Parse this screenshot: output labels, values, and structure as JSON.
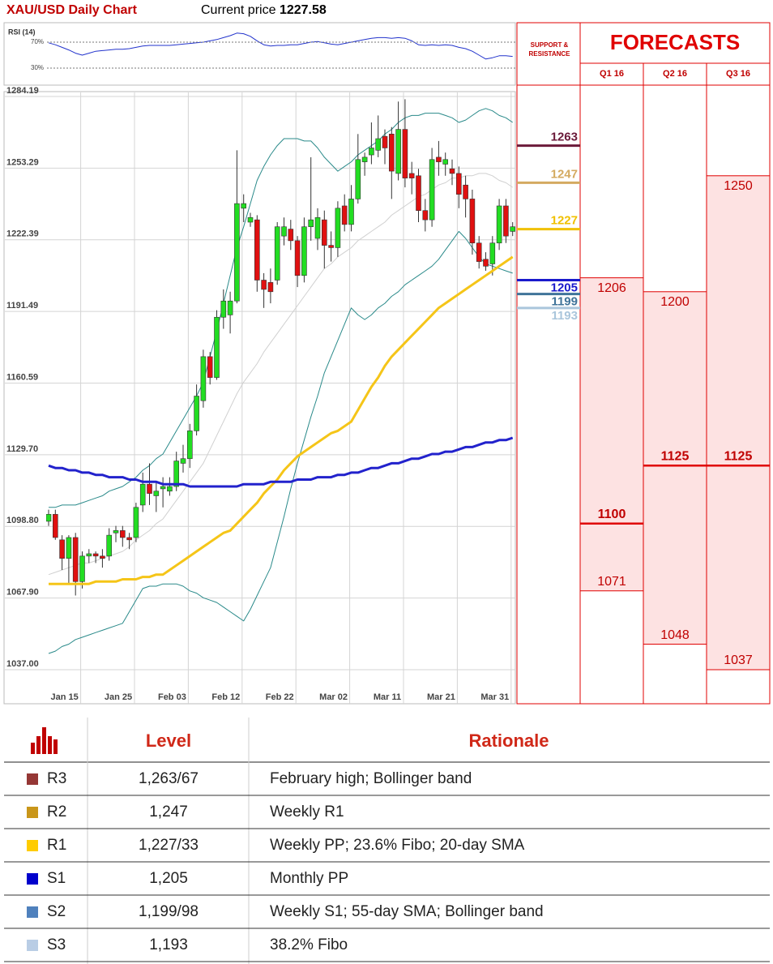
{
  "chart_data": [
    {
      "type": "candlestick",
      "title": "XAU/USD Daily Chart",
      "price_label": "Current price",
      "current_price": 1227.58,
      "categories": [
        null,
        null,
        "Jan 15",
        null,
        null,
        null,
        null,
        null,
        null,
        null,
        "Jan 25",
        null,
        null,
        null,
        null,
        null,
        null,
        null,
        "Feb 03",
        null,
        null,
        null,
        null,
        null,
        null,
        null,
        "Feb 12",
        null,
        null,
        null,
        null,
        null,
        null,
        null,
        "Feb 22",
        null,
        null,
        null,
        null,
        null,
        null,
        null,
        "Mar 02",
        null,
        null,
        null,
        null,
        null,
        null,
        null,
        "Mar 11",
        null,
        null,
        null,
        null,
        null,
        null,
        null,
        "Mar 21",
        null,
        null,
        null,
        null,
        null,
        null,
        null,
        "Mar 31",
        null,
        null,
        null
      ],
      "open": [
        1101,
        1104,
        1093,
        1085,
        1094,
        1075,
        1086,
        1087,
        1086,
        1086,
        1096,
        1097,
        1094,
        1094,
        1108,
        1117,
        1112,
        1115,
        1114,
        1116,
        1126,
        1128,
        1140,
        1153,
        1172,
        1163,
        1189,
        1190,
        1196,
        1236,
        1230,
        1231,
        1205,
        1204,
        1205,
        1224,
        1227,
        1222,
        1207,
        1228,
        1223,
        1231,
        1220,
        1219,
        1237,
        1229,
        1240,
        1256,
        1259,
        1261,
        1267,
        1268,
        1251,
        1270,
        1251,
        1250,
        1235,
        1231,
        1258,
        1255,
        1253,
        1251,
        1246,
        1240,
        1221,
        1214,
        1212,
        1221,
        1237,
        1226
      ],
      "high": [
        1106,
        1106,
        1095,
        1095,
        1096,
        1088,
        1089,
        1088,
        1089,
        1098,
        1099,
        1099,
        1096,
        1109,
        1122,
        1126,
        1118,
        1120,
        1120,
        1131,
        1134,
        1143,
        1160,
        1175,
        1174,
        1192,
        1201,
        1200,
        1261,
        1242,
        1234,
        1233,
        1208,
        1210,
        1230,
        1232,
        1231,
        1224,
        1232,
        1258,
        1236,
        1235,
        1226,
        1239,
        1242,
        1246,
        1268,
        1260,
        1273,
        1276,
        1270,
        1271,
        1282,
        1283,
        1256,
        1253,
        1240,
        1262,
        1265,
        1260,
        1257,
        1254,
        1250,
        1244,
        1224,
        1217,
        1224,
        1240,
        1240,
        1230
      ],
      "low": [
        1099,
        1093,
        1080,
        1074,
        1069,
        1072,
        1083,
        1083,
        1081,
        1084,
        1092,
        1090,
        1089,
        1092,
        1105,
        1108,
        1105,
        1107,
        1112,
        1114,
        1122,
        1124,
        1138,
        1150,
        1160,
        1162,
        1184,
        1182,
        1195,
        1230,
        1228,
        1200,
        1193,
        1195,
        1203,
        1220,
        1218,
        1202,
        1204,
        1222,
        1218,
        1210,
        1213,
        1215,
        1226,
        1226,
        1238,
        1250,
        1255,
        1258,
        1255,
        1240,
        1248,
        1245,
        1242,
        1230,
        1226,
        1228,
        1250,
        1250,
        1246,
        1236,
        1232,
        1216,
        1210,
        1209,
        1207,
        1218,
        1221,
        1224
      ],
      "close": [
        1104,
        1094,
        1085,
        1094,
        1075,
        1086,
        1087,
        1086,
        1085,
        1095,
        1097,
        1094,
        1093,
        1107,
        1117,
        1113,
        1114,
        1116,
        1116,
        1127,
        1128,
        1140,
        1155,
        1172,
        1163,
        1189,
        1196,
        1196,
        1238,
        1238,
        1232,
        1205,
        1201,
        1200,
        1228,
        1228,
        1222,
        1207,
        1228,
        1231,
        1232,
        1220,
        1219,
        1236,
        1229,
        1240,
        1257,
        1258,
        1262,
        1266,
        1262,
        1252,
        1270,
        1249,
        1249,
        1235,
        1231,
        1257,
        1256,
        1257,
        1251,
        1242,
        1240,
        1221,
        1213,
        1211,
        1221,
        1237,
        1224,
        1228
      ],
      "up_color": "#22dd22",
      "down_color": "#e01010",
      "series": [
        {
          "color": "#2a8a8a",
          "width": 1,
          "values": [
            1107,
            1107,
            1108,
            1108,
            1108,
            1109,
            1110,
            1111,
            1112,
            1114,
            1115,
            1116,
            1118,
            1120,
            1123,
            1125,
            1128,
            1130,
            1135,
            1140,
            1145,
            1150,
            1155,
            1161,
            1172,
            1183,
            1195,
            1207,
            1219,
            1228,
            1238,
            1248,
            1254,
            1259,
            1263,
            1266,
            1266,
            1266,
            1265,
            1265,
            1262,
            1258,
            1255,
            1252,
            1254,
            1256,
            1259,
            1261,
            1263,
            1265,
            1268,
            1270,
            1273,
            1275,
            1276,
            1276,
            1277,
            1277,
            1277,
            1276,
            1275,
            1273,
            1274,
            1276,
            1278,
            1279,
            1278,
            1276,
            1275,
            1273
          ]
        },
        {
          "color": "#d0d0d0",
          "width": 1,
          "values": [
            1078,
            1079,
            1080,
            1081,
            1082,
            1083,
            1083,
            1084,
            1085,
            1086,
            1087,
            1088,
            1090,
            1093,
            1095,
            1097,
            1100,
            1102,
            1106,
            1110,
            1114,
            1118,
            1122,
            1126,
            1132,
            1138,
            1144,
            1150,
            1156,
            1161,
            1165,
            1169,
            1174,
            1178,
            1182,
            1186,
            1190,
            1194,
            1198,
            1202,
            1206,
            1210,
            1212,
            1215,
            1217,
            1219,
            1222,
            1224,
            1226,
            1228,
            1230,
            1233,
            1235,
            1237,
            1239,
            1241,
            1242,
            1244,
            1246,
            1247,
            1249,
            1249,
            1250,
            1250,
            1251,
            1251,
            1250,
            1248,
            1247,
            1245
          ]
        },
        {
          "color": "#2a8a8a",
          "width": 1,
          "values": [
            1044,
            1045,
            1047,
            1048,
            1050,
            1051,
            1052,
            1053,
            1054,
            1055,
            1056,
            1057,
            1062,
            1067,
            1072,
            1073,
            1073,
            1074,
            1074,
            1074,
            1073,
            1071,
            1070,
            1068,
            1067,
            1066,
            1064,
            1062,
            1060,
            1058,
            1063,
            1069,
            1075,
            1081,
            1092,
            1103,
            1115,
            1126,
            1136,
            1146,
            1155,
            1165,
            1172,
            1179,
            1186,
            1193,
            1190,
            1188,
            1190,
            1193,
            1195,
            1198,
            1200,
            1203,
            1205,
            1207,
            1209,
            1211,
            1214,
            1218,
            1222,
            1226,
            1223,
            1219,
            1215,
            1212,
            1211,
            1210,
            1209,
            1208
          ]
        },
        {
          "color": "#f5c518",
          "width": 3,
          "values": [
            1074,
            1074,
            1074,
            1074,
            1074,
            1074,
            1074,
            1075,
            1075,
            1075,
            1075,
            1076,
            1076,
            1076,
            1077,
            1077,
            1078,
            1078,
            1080,
            1082,
            1084,
            1086,
            1088,
            1090,
            1092,
            1094,
            1096,
            1097,
            1100,
            1103,
            1106,
            1109,
            1113,
            1116,
            1119,
            1123,
            1126,
            1129,
            1131,
            1133,
            1135,
            1137,
            1139,
            1140,
            1142,
            1144,
            1149,
            1154,
            1159,
            1163,
            1168,
            1172,
            1175,
            1178,
            1181,
            1184,
            1187,
            1190,
            1193,
            1195,
            1197,
            1199,
            1201,
            1203,
            1205,
            1207,
            1209,
            1211,
            1213,
            1215
          ]
        },
        {
          "color": "#2222cc",
          "width": 3,
          "values": [
            1125,
            1124,
            1124,
            1123,
            1123,
            1122,
            1122,
            1121,
            1121,
            1120,
            1120,
            1120,
            1119,
            1119,
            1118,
            1118,
            1118,
            1117,
            1117,
            1117,
            1117,
            1116,
            1116,
            1116,
            1116,
            1116,
            1116,
            1116,
            1116,
            1117,
            1117,
            1117,
            1117,
            1118,
            1118,
            1118,
            1118,
            1119,
            1119,
            1119,
            1120,
            1120,
            1120,
            1121,
            1121,
            1122,
            1122,
            1123,
            1124,
            1124,
            1125,
            1126,
            1126,
            1127,
            1128,
            1128,
            1129,
            1130,
            1130,
            1131,
            1131,
            1132,
            1133,
            1133,
            1134,
            1135,
            1135,
            1136,
            1136,
            1137
          ]
        }
      ],
      "ylim": [
        1037,
        1284.19
      ],
      "yticks": [
        {
          "value": 1037,
          "label": "1037.00"
        },
        {
          "value": 1067.9,
          "label": "1067.90"
        },
        {
          "value": 1098.8,
          "label": "1098.80"
        },
        {
          "value": 1129.7,
          "label": "1129.70"
        },
        1160.59,
        1191.49,
        1222.39,
        1253.29,
        1284.19
      ],
      "grid": true
    },
    {
      "type": "line",
      "title": "RSI (14)",
      "color": "#2233cc",
      "ylim": [
        0,
        100
      ],
      "yticks": [
        {
          "value": 70,
          "label": "70%"
        },
        {
          "value": 30,
          "label": "30%"
        }
      ],
      "values": [
        69,
        66,
        62,
        58,
        53,
        50,
        53,
        56,
        57,
        58,
        59,
        59,
        60,
        62,
        64,
        65,
        65,
        65,
        65,
        66,
        67,
        68,
        69,
        70,
        72,
        74,
        77,
        80,
        84,
        83,
        79,
        72,
        66,
        64,
        65,
        65,
        66,
        66,
        68,
        70,
        71,
        69,
        67,
        66,
        68,
        70,
        72,
        74,
        76,
        77,
        77,
        76,
        77,
        76,
        72,
        66,
        65,
        66,
        65,
        66,
        65,
        62,
        60,
        56,
        50,
        44,
        46,
        49,
        49,
        48
      ]
    }
  ],
  "forecast_panel": {
    "support_resistance_title": "SUPPORT & RESISTANCE",
    "title": "FORECASTS",
    "border_color": "#e00000",
    "fill": "#fde2e2",
    "levels": [
      {
        "value": 1263,
        "color": "#6b1a3a"
      },
      {
        "value": 1247,
        "color": "#d4aa60"
      },
      {
        "value": 1227,
        "color": "#f0c000"
      },
      {
        "value": 1205,
        "color": "#1a1acc"
      },
      {
        "value": 1199,
        "color": "#3f7399"
      },
      {
        "value": 1193,
        "color": "#aac6dc"
      }
    ],
    "quarters": [
      {
        "name": "Q1 16",
        "high": 1206,
        "mid": 1100,
        "low": 1071
      },
      {
        "name": "Q2 16",
        "high": 1200,
        "mid": 1125,
        "low": 1048
      },
      {
        "name": "Q3 16",
        "high": 1250,
        "mid": 1125,
        "low": 1037
      }
    ]
  },
  "table": {
    "header": [
      "Level",
      "Rationale"
    ],
    "rows": [
      {
        "name": "R3",
        "color": "#953735",
        "level": "1,263/67",
        "rationale": "February high; Bollinger band"
      },
      {
        "name": "R2",
        "color": "#c9961a",
        "level": "1,247",
        "rationale": "Weekly R1"
      },
      {
        "name": "R1",
        "color": "#ffcc00",
        "level": "1,227/33",
        "rationale": "Weekly PP; 23.6% Fibo; 20-day SMA"
      },
      {
        "name": "S1",
        "color": "#0000cc",
        "level": "1,205",
        "rationale": "Monthly PP"
      },
      {
        "name": "S2",
        "color": "#4f81bd",
        "level": "1,199/98",
        "rationale": "Weekly S1; 55-day SMA; Bollinger band"
      },
      {
        "name": "S3",
        "color": "#b9cde5",
        "level": "1,193",
        "rationale": "38.2% Fibo"
      }
    ]
  }
}
